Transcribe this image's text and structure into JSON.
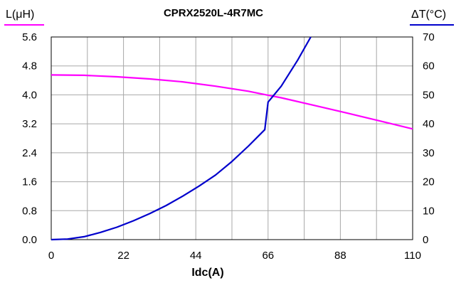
{
  "chart_data": {
    "type": "line",
    "title": "CPRX2520L-4R7MC",
    "xlabel": "Idc(A)",
    "ylabel_left": "L(μH)",
    "ylabel_right": "ΔT(°C)",
    "xlim": [
      0,
      110
    ],
    "ylim_left": [
      0,
      5.6
    ],
    "ylim_right": [
      0,
      70
    ],
    "x_ticks": [
      "0",
      "22",
      "44",
      "66",
      "88",
      "110"
    ],
    "y_left_ticks": [
      "0.0",
      "0.8",
      "1.6",
      "2.4",
      "3.2",
      "4.0",
      "4.8",
      "5.6"
    ],
    "y_right_ticks": [
      "0",
      "10",
      "20",
      "30",
      "40",
      "50",
      "60",
      "70"
    ],
    "grid": true,
    "colors": {
      "inductance": "#ff00ff",
      "temperature": "#0000cc"
    },
    "series": [
      {
        "axis": "left",
        "x": [
          0,
          10,
          20,
          30,
          40,
          50,
          60,
          66,
          70,
          80,
          90,
          100,
          110
        ],
        "values": [
          4.55,
          4.54,
          4.5,
          4.44,
          4.36,
          4.24,
          4.1,
          3.99,
          3.92,
          3.71,
          3.5,
          3.28,
          3.06
        ]
      },
      {
        "axis": "right",
        "x": [
          0,
          5,
          10,
          15,
          20,
          25,
          30,
          35,
          40,
          45,
          50,
          55,
          60,
          65,
          66,
          70,
          75,
          79
        ],
        "values": [
          0,
          0.2,
          1,
          2.5,
          4.3,
          6.5,
          9,
          11.8,
          15,
          18.5,
          22.3,
          27,
          32.3,
          38,
          47.5,
          53,
          62,
          70
        ]
      }
    ]
  }
}
